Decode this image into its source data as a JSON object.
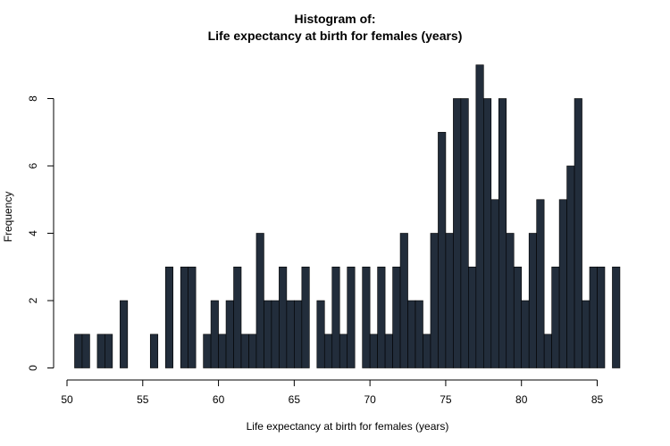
{
  "chart_data": {
    "type": "bar",
    "title_line1": "Histogram of:",
    "title_line2": "Life expectancy at birth for females (years)",
    "xlabel": "Life expectancy at birth for females (years)",
    "ylabel": "Frequency",
    "xlim": [
      50,
      87
    ],
    "ylim": [
      0,
      9
    ],
    "x_ticks": [
      50,
      55,
      60,
      65,
      70,
      75,
      80,
      85
    ],
    "y_ticks": [
      0,
      2,
      4,
      6,
      8
    ],
    "bin_width": 0.5,
    "bin_start": 50.5,
    "bin_edges_note": "",
    "values": [
      1,
      1,
      0,
      1,
      1,
      0,
      2,
      0,
      0,
      0,
      1,
      0,
      3,
      0,
      3,
      3,
      0,
      1,
      2,
      1,
      2,
      3,
      1,
      1,
      4,
      2,
      2,
      3,
      2,
      2,
      3,
      0,
      2,
      1,
      3,
      1,
      3,
      0,
      3,
      1,
      3,
      1,
      3,
      4,
      2,
      2,
      1,
      4,
      7,
      4,
      8,
      8,
      3,
      9,
      8,
      5,
      8,
      4,
      3,
      2,
      4,
      5,
      1,
      3,
      5,
      6,
      8,
      2,
      3,
      3,
      0,
      3
    ],
    "bar_color": "#222d3b",
    "grid": false
  }
}
